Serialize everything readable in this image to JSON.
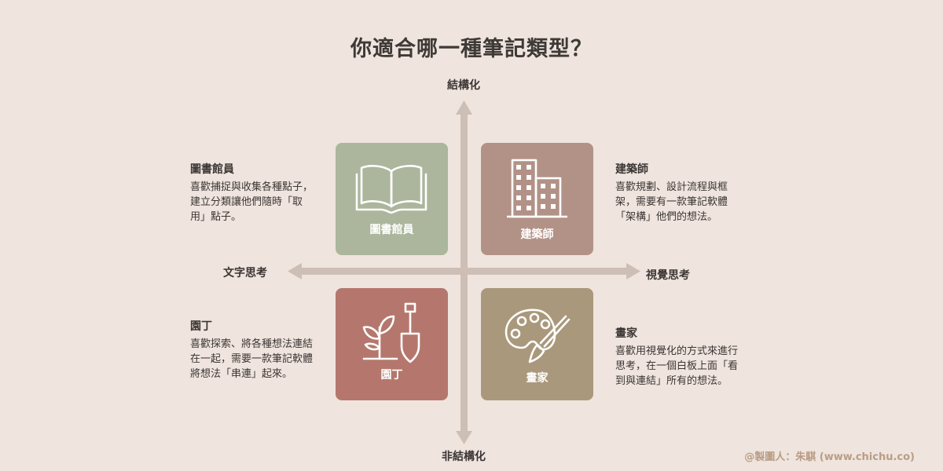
{
  "title": "你適合哪一種筆記類型？",
  "axes": {
    "top": "結構化",
    "bottom": "非結構化",
    "left": "文字思考",
    "right": "視覺思考"
  },
  "quadrants": {
    "librarian": {
      "label": "圖書館員",
      "icon": "open-book-icon",
      "color": "#abb69c",
      "title": "圖書館員",
      "description": "喜歡捕捉與收集各種點子，建立分類讓他們隨時「取用」點子。"
    },
    "architect": {
      "label": "建築師",
      "icon": "buildings-icon",
      "color": "#b29287",
      "title": "建築師",
      "description": "喜歡規劃、設計流程與框架，需要有一款筆記軟體「架構」他們的想法。"
    },
    "gardener": {
      "label": "園丁",
      "icon": "sprout-shovel-icon",
      "color": "#b5776d",
      "title": "園丁",
      "description": "喜歡探索、將各種想法連結在一起，需要一款筆記軟體將想法「串連」起來。"
    },
    "painter": {
      "label": "畫家",
      "icon": "palette-brush-icon",
      "color": "#a9987b",
      "title": "畫家",
      "description": "喜歡用視覺化的方式來進行思考，在一個白板上面「看到與連結」所有的想法。"
    }
  },
  "credit": "@製圖人：朱騏 (www.chichu.co)"
}
